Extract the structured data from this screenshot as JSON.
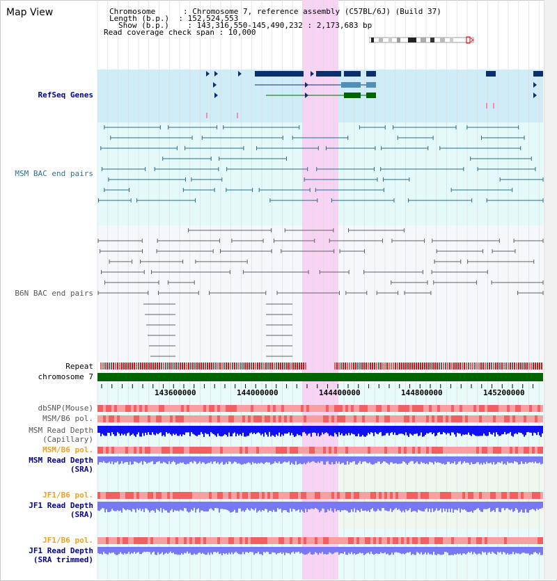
{
  "view_title": "Map View",
  "info_lines": [
    "Chromosome      : Chromosome 7, reference assembly (C57BL/6J) (Build 37)",
    "Length (b.p.)  : 152,524,553",
    "Show (b.p.)    : 143,316,550-145,490,232 : 2,173,683 bp",
    "Read coverage check span : 10,000"
  ],
  "tracks": {
    "refseq": "RefSeq Genes",
    "msm_bac": "MSM BAC end pairs",
    "b6n_bac": "B6N BAC end pairs",
    "repeat": "Repeat",
    "chromosome": "chromosome 7",
    "dbsnp": "dbSNP(Mouse)",
    "msm_b6_pol_1": "MSM/B6 pol.",
    "msm_depth_cap_1": "MSM Read Depth",
    "msm_depth_cap_2": "(Capillary)",
    "msm_b6_pol_2": "MSM/B6 pol.",
    "msm_depth_sra_1": "MSM Read Depth",
    "msm_depth_sra_2": "(SRA)",
    "jf1_b6_pol_1": "JF1/B6 pol.",
    "jf1_depth_sra_1": "JF1 Read Depth",
    "jf1_depth_sra_2": "(SRA)",
    "jf1_b6_pol_2": "JF1/B6 pol.",
    "jf1_depth_trim_1": "JF1 Read Depth",
    "jf1_depth_trim_2": "(SRA trimmed)"
  },
  "ruler": [
    "143600000",
    "144000000",
    "144400000",
    "144800000",
    "145200000"
  ],
  "colors": {
    "highlight": "#f8d4f4",
    "refseq_bg": "#d0ecf8",
    "bac_bg": "#e4fafa",
    "gene_dark": "#0a2e6e",
    "gene_mid": "#5090b8",
    "gene_green": "#006400",
    "msm_pair": "#2a6a88",
    "b6n_pair": "#606060",
    "chromosome_bar": "#006400",
    "depth_blue": "#1010f0",
    "depth_light": "#7878f0"
  }
}
